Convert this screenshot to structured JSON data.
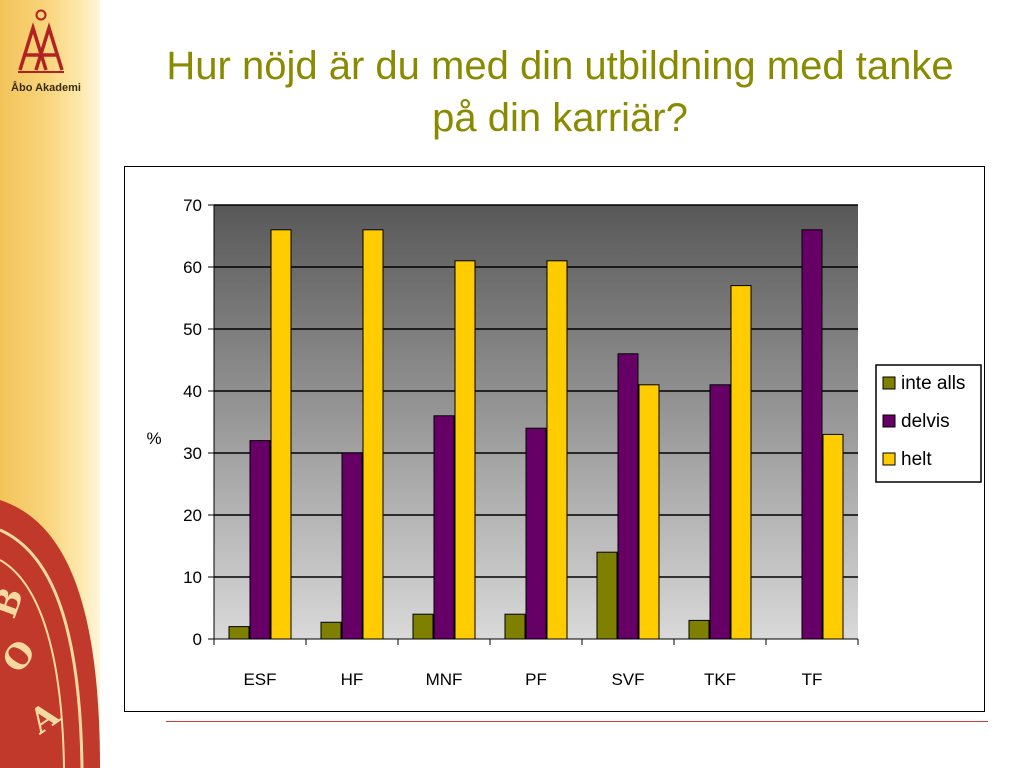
{
  "slide": {
    "title": "Hur nöjd är du med din utbildning med tanke på din karriär?",
    "logo_text": "Åbo Akademi"
  },
  "colors": {
    "title": "#8a8a00",
    "inte_alls": "#7f7f00",
    "delvis": "#660066",
    "helt": "#ffcc00",
    "plot_top": "#585858",
    "plot_bottom": "#d9d9d9",
    "footer_line": "#d43a3a"
  },
  "chart_data": {
    "type": "bar",
    "title": "",
    "xlabel": "",
    "ylabel": "%",
    "ylim": [
      0,
      70
    ],
    "yticks": [
      0,
      10,
      20,
      30,
      40,
      50,
      60,
      70
    ],
    "categories": [
      "ESF",
      "HF",
      "MNF",
      "PF",
      "SVF",
      "TKF",
      "TF"
    ],
    "series": [
      {
        "name": "inte alls",
        "values": [
          2,
          2.7,
          4,
          4,
          14,
          3,
          0
        ]
      },
      {
        "name": "delvis",
        "values": [
          32,
          30,
          36,
          34,
          46,
          41,
          66
        ]
      },
      {
        "name": "helt",
        "values": [
          66,
          66,
          61,
          61,
          41,
          57,
          33
        ]
      }
    ],
    "grid": true,
    "legend_position": "right"
  }
}
